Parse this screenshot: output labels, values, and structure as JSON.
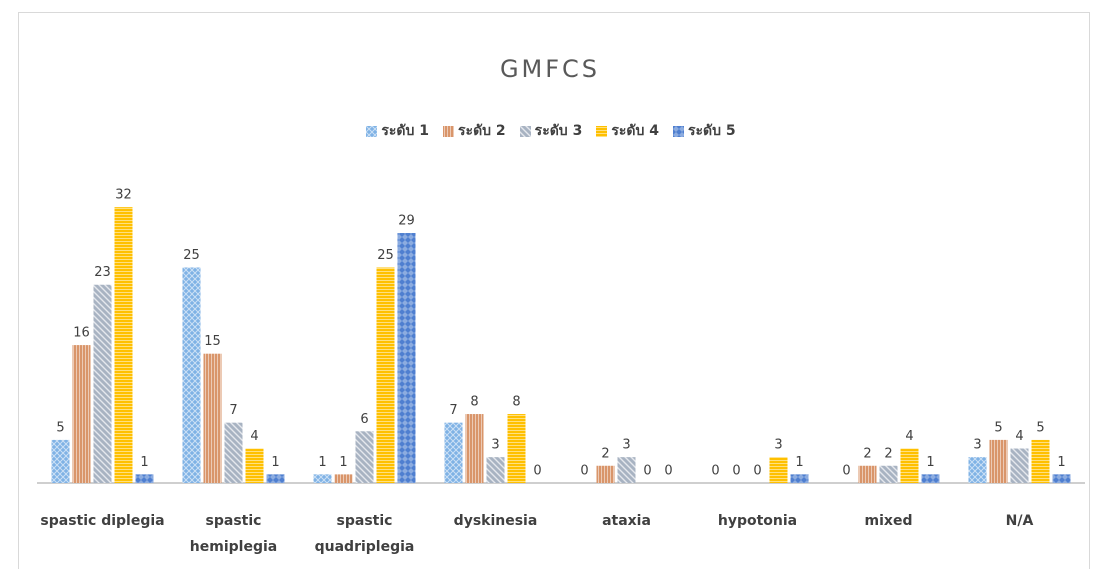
{
  "chart_data": {
    "type": "bar",
    "title": "GMFCS",
    "categories": [
      "spastic diplegia",
      "spastic hemiplegia",
      "spastic quadriplegia",
      "dyskinesia",
      "ataxia",
      "hypotonia",
      "mixed",
      "N/A"
    ],
    "series": [
      {
        "name": "ระดับ 1",
        "color": "#7fb2e5",
        "values": [
          5,
          25,
          1,
          7,
          0,
          0,
          0,
          3
        ]
      },
      {
        "name": "ระดับ 2",
        "color": "#d9956a",
        "values": [
          16,
          15,
          1,
          8,
          2,
          0,
          2,
          5
        ]
      },
      {
        "name": "ระดับ 3",
        "color": "#a8b3c2",
        "values": [
          23,
          7,
          6,
          3,
          3,
          0,
          2,
          4
        ]
      },
      {
        "name": "ระดับ 4",
        "color": "#ffc000",
        "values": [
          32,
          4,
          25,
          8,
          0,
          3,
          4,
          5
        ]
      },
      {
        "name": "ระดับ 5",
        "color": "#4f7fd0",
        "values": [
          1,
          1,
          29,
          0,
          0,
          1,
          1,
          1
        ]
      }
    ],
    "legend": "top"
  }
}
